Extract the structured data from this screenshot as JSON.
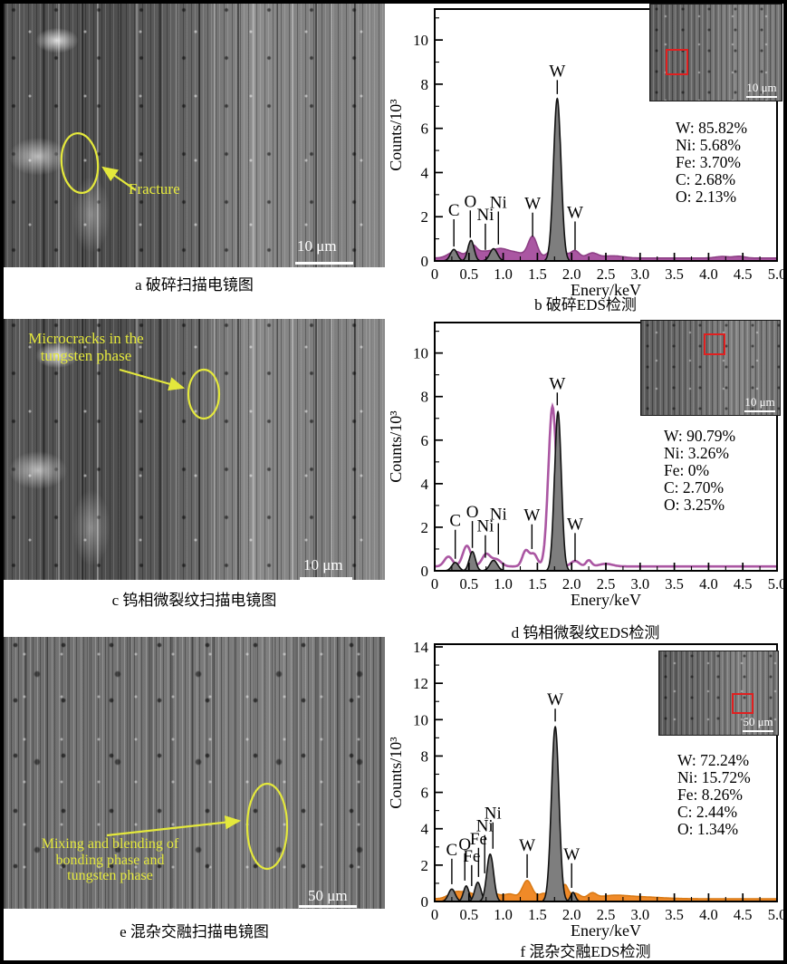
{
  "colors": {
    "eds_purple": "#aa56a2",
    "eds_orange": "#f08a28",
    "peak_gray": "#7e7e7e",
    "annotation_yellow": "#e4e83c",
    "analysis_box_red": "#e02020"
  },
  "panels": {
    "a": {
      "caption": "a 破碎扫描电镜图",
      "annotation": "Fracture",
      "scale_bar": "10 μm"
    },
    "c": {
      "caption": "c 钨相微裂纹扫描电镜图",
      "annotation_lines": [
        "Microcracks in the",
        "tungsten phase"
      ],
      "scale_bar": "10 μm"
    },
    "e": {
      "caption": "e 混杂交融扫描电镜图",
      "annotation_lines": [
        "Mixing and blending of",
        "bonding phase and",
        "tungsten phase"
      ],
      "scale_bar": "50 μm"
    }
  },
  "chart_data": [
    {
      "id": "b",
      "type": "area",
      "caption": "b 破碎EDS检测",
      "xlabel": "Enery/keV",
      "ylabel": "Counts/10³",
      "xlim": [
        0,
        5
      ],
      "ylim": [
        0,
        11.4
      ],
      "xticks_major": 0.5,
      "xticks_minor": 0.25,
      "yticks_major": 2,
      "yticks_minor": 1,
      "series_color": "#aa56a2",
      "series_stroke": "#8d3f85",
      "series_style": "fill",
      "baseline": 0.13,
      "background_bumps": [
        [
          0.3,
          0.3,
          0.1
        ],
        [
          0.55,
          0.5,
          0.06
        ],
        [
          0.7,
          0.25,
          0.1
        ],
        [
          0.95,
          0.4,
          0.12
        ],
        [
          1.2,
          0.22,
          0.12
        ],
        [
          1.43,
          0.95,
          0.065
        ],
        [
          1.78,
          0.55,
          0.1
        ],
        [
          2.05,
          0.33,
          0.06
        ],
        [
          2.3,
          0.22,
          0.08
        ],
        [
          2.6,
          0.1,
          0.15
        ],
        [
          4.2,
          0.07,
          0.1
        ],
        [
          4.45,
          0.08,
          0.08
        ]
      ],
      "gray_peaks": [
        [
          0.28,
          0.52,
          0.05
        ],
        [
          0.53,
          0.93,
          0.045
        ],
        [
          0.86,
          0.55,
          0.055
        ],
        [
          1.79,
          7.35,
          0.055
        ]
      ],
      "peak_labels": [
        {
          "t": "C",
          "x": 0.28,
          "ty": 2.05,
          "le": 0.65
        },
        {
          "t": "O",
          "x": 0.52,
          "ty": 2.45,
          "le": 1.05
        },
        {
          "t": "Ni",
          "x": 0.74,
          "ty": 1.85,
          "le": 0.5
        },
        {
          "t": "Ni",
          "x": 0.93,
          "ty": 2.4,
          "le": 0.75
        },
        {
          "t": "W",
          "x": 1.43,
          "ty": 2.35,
          "le": 1.1
        },
        {
          "t": "W",
          "x": 1.79,
          "ty": 8.35,
          "le": 7.55
        },
        {
          "t": "W",
          "x": 2.05,
          "ty": 1.95,
          "le": 0.5
        }
      ],
      "composition": [
        "W: 85.82%",
        "Ni: 5.68%",
        "Fe: 3.70%",
        "C: 2.68%",
        "O: 2.13%"
      ],
      "inset": {
        "scale_bar": "10 μm",
        "red_box": {
          "left": "12%",
          "top": "46%",
          "w": "14%",
          "h": "24%"
        }
      }
    },
    {
      "id": "d",
      "type": "line",
      "caption": "d 钨相微裂纹EDS检测",
      "xlabel": "Enery/keV",
      "ylabel": "Counts/10³",
      "xlim": [
        0,
        5
      ],
      "ylim": [
        0,
        11.4
      ],
      "xticks_major": 0.5,
      "xticks_minor": 0.25,
      "yticks_major": 2,
      "yticks_minor": 1,
      "series_color": "#aa56a2",
      "series_stroke": "#aa56a2",
      "series_style": "line",
      "baseline": 0.2,
      "background_bumps": [
        [
          0.2,
          0.45,
          0.06
        ],
        [
          0.47,
          0.95,
          0.06
        ],
        [
          0.75,
          0.55,
          0.06
        ],
        [
          0.9,
          0.32,
          0.07
        ],
        [
          1.33,
          0.72,
          0.05
        ],
        [
          1.45,
          0.55,
          0.05
        ],
        [
          1.72,
          7.35,
          0.06
        ],
        [
          2.05,
          0.25,
          0.06
        ],
        [
          2.25,
          0.28,
          0.04
        ],
        [
          2.5,
          0.12,
          0.1
        ]
      ],
      "gray_peaks": [
        [
          0.3,
          0.38,
          0.05
        ],
        [
          0.55,
          0.88,
          0.045
        ],
        [
          0.86,
          0.48,
          0.055
        ],
        [
          1.8,
          7.3,
          0.05
        ]
      ],
      "peak_labels": [
        {
          "t": "C",
          "x": 0.3,
          "ty": 2.05,
          "le": 0.55
        },
        {
          "t": "O",
          "x": 0.55,
          "ty": 2.45,
          "le": 1.05
        },
        {
          "t": "Ni",
          "x": 0.74,
          "ty": 1.8,
          "le": 0.6
        },
        {
          "t": "Ni",
          "x": 0.93,
          "ty": 2.35,
          "le": 0.75
        },
        {
          "t": "W",
          "x": 1.42,
          "ty": 2.3,
          "le": 1.0
        },
        {
          "t": "W",
          "x": 1.79,
          "ty": 8.35,
          "le": 7.6
        },
        {
          "t": "W",
          "x": 2.05,
          "ty": 1.9,
          "le": 0.45
        }
      ],
      "composition": [
        "W: 90.79%",
        "Ni: 3.26%",
        "Fe: 0%",
        "C: 2.70%",
        "O: 3.25%"
      ],
      "inset": {
        "scale_bar": "10 μm",
        "red_box": {
          "left": "45%",
          "top": "13%",
          "w": "13%",
          "h": "20%"
        }
      }
    },
    {
      "id": "f",
      "type": "area",
      "caption": "f 混杂交融EDS检测",
      "xlabel": "Enery/keV",
      "ylabel": "Counts/10³",
      "xlim": [
        0,
        5
      ],
      "ylim": [
        0,
        14.15
      ],
      "xticks_major": 0.5,
      "xticks_minor": 0.25,
      "yticks_major": 2,
      "yticks_minor": 1,
      "series_color": "#f08a28",
      "series_stroke": "#d97a16",
      "series_style": "fill",
      "baseline": 0.15,
      "background_bumps": [
        [
          0.3,
          0.35,
          0.1
        ],
        [
          0.5,
          0.3,
          0.1
        ],
        [
          0.85,
          0.3,
          0.1
        ],
        [
          1.1,
          0.25,
          0.08
        ],
        [
          1.35,
          1.0,
          0.07
        ],
        [
          1.6,
          0.3,
          0.08
        ],
        [
          1.9,
          0.75,
          0.045
        ],
        [
          2.05,
          0.3,
          0.07
        ],
        [
          2.3,
          0.28,
          0.06
        ],
        [
          2.6,
          0.15,
          0.2
        ],
        [
          3.0,
          0.1,
          0.3
        ]
      ],
      "gray_peaks": [
        [
          0.25,
          0.68,
          0.05
        ],
        [
          0.46,
          0.85,
          0.04
        ],
        [
          0.63,
          1.05,
          0.045
        ],
        [
          0.81,
          2.6,
          0.05
        ],
        [
          1.76,
          9.6,
          0.055
        ],
        [
          2.02,
          0.5,
          0.035
        ]
      ],
      "peak_labels": [
        {
          "t": "C",
          "x": 0.25,
          "ty": 2.55,
          "le": 0.95
        },
        {
          "t": "O",
          "x": 0.44,
          "ty": 2.85,
          "le": 1.15
        },
        {
          "t": "Fe",
          "x": 0.54,
          "ty": 2.2,
          "le": 0.85
        },
        {
          "t": "Fe",
          "x": 0.64,
          "ty": 3.15,
          "le": 1.35
        },
        {
          "t": "Ni",
          "x": 0.73,
          "ty": 3.85,
          "le": 1.55
        },
        {
          "t": "Ni",
          "x": 0.85,
          "ty": 4.55,
          "le": 2.9
        },
        {
          "t": "W",
          "x": 1.35,
          "ty": 2.8,
          "le": 1.3
        },
        {
          "t": "W",
          "x": 1.76,
          "ty": 10.8,
          "le": 9.9
        },
        {
          "t": "W",
          "x": 2.0,
          "ty": 2.3,
          "le": 0.75
        }
      ],
      "composition": [
        "W: 72.24%",
        "Ni: 15.72%",
        "Fe: 8.26%",
        "C: 2.44%",
        "O: 1.34%"
      ],
      "inset": {
        "scale_bar": "50 μm",
        "red_box": {
          "left": "61%",
          "top": "50%",
          "w": "15%",
          "h": "21%"
        }
      }
    }
  ]
}
